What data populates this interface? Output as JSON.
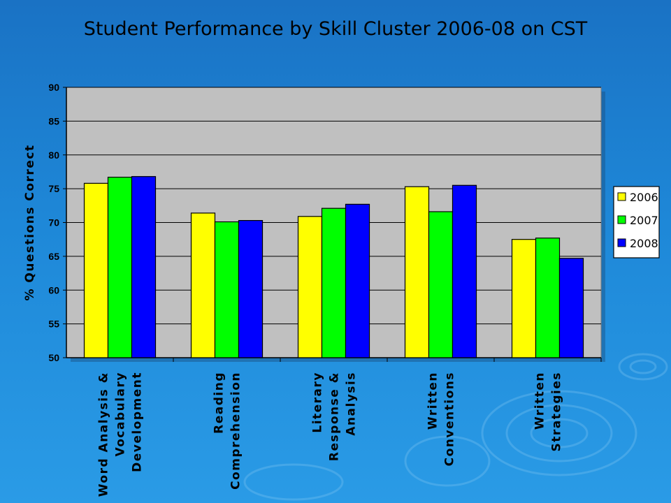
{
  "title": "Student Performance by Skill Cluster 2006-08 on CST",
  "colors": {
    "background": "#1e88d8",
    "plot_area": "#c0c0c0",
    "series": [
      "#ffff00",
      "#00ff00",
      "#0000ff"
    ]
  },
  "chart_data": {
    "type": "bar",
    "title": "Student Performance by Skill Cluster 2006-08 on CST",
    "ylabel": "% Questions Correct",
    "xlabel": "",
    "ylim": [
      50,
      90
    ],
    "yticks": [
      50,
      55,
      60,
      65,
      70,
      75,
      80,
      85,
      90
    ],
    "grid": true,
    "legend_position": "right",
    "categories": [
      [
        "Word Analysis &",
        "Vocabulary",
        "Development"
      ],
      [
        "Reading",
        "Comprehension"
      ],
      [
        "Literary",
        "Response &",
        "Analysis"
      ],
      [
        "Written",
        "Conventions"
      ],
      [
        "Written",
        "Strategies"
      ]
    ],
    "series": [
      {
        "name": "2006",
        "values": [
          75.8,
          71.4,
          70.9,
          75.3,
          67.5
        ]
      },
      {
        "name": "2007",
        "values": [
          76.7,
          70.1,
          72.1,
          71.6,
          67.7
        ]
      },
      {
        "name": "2008",
        "values": [
          76.8,
          70.3,
          72.7,
          75.5,
          64.7
        ]
      }
    ]
  }
}
